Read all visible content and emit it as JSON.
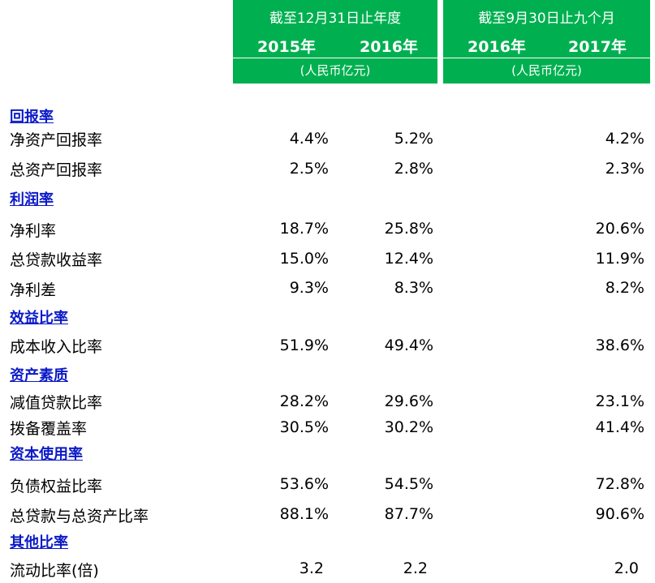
{
  "header": {
    "group1": {
      "title": "截至12月31日止年度",
      "years": [
        "2015年",
        "2016年"
      ],
      "unit": "(人民币亿元)"
    },
    "group2": {
      "title": "截至9月30日止九个月",
      "years": [
        "2016年",
        "2017年"
      ],
      "unit": "(人民币亿元)"
    }
  },
  "sections": [
    {
      "title": "回报率",
      "rows": [
        {
          "label": "净资产回报率",
          "v2015": "4.4%",
          "v2016": "5.2%",
          "v2017": "4.2%"
        },
        {
          "label": "总资产回报率",
          "v2015": "2.5%",
          "v2016": "2.8%",
          "v2017": "2.3%"
        }
      ]
    },
    {
      "title": "利润率",
      "rows": [
        {
          "label": "净利率",
          "v2015": "18.7%",
          "v2016": "25.8%",
          "v2017": "20.6%"
        },
        {
          "label": "总贷款收益率",
          "v2015": "15.0%",
          "v2016": "12.4%",
          "v2017": "11.9%"
        },
        {
          "label": "净利差",
          "v2015": "9.3%",
          "v2016": "8.3%",
          "v2017": "8.2%"
        }
      ]
    },
    {
      "title": "效益比率",
      "rows": [
        {
          "label": "成本收入比率",
          "v2015": "51.9%",
          "v2016": "49.4%",
          "v2017": "38.6%"
        }
      ]
    },
    {
      "title": "资产素质",
      "rows": [
        {
          "label": "减值贷款比率",
          "v2015": "28.2%",
          "v2016": "29.6%",
          "v2017": "23.1%"
        },
        {
          "label": "拨备覆盖率",
          "v2015": "30.5%",
          "v2016": "30.2%",
          "v2017": "41.4%"
        }
      ]
    },
    {
      "title": "资本使用率",
      "rows": [
        {
          "label": "负债权益比率",
          "v2015": "53.6%",
          "v2016": "54.5%",
          "v2017": "72.8%"
        },
        {
          "label": "总贷款与总资产比率",
          "v2015": "88.1%",
          "v2016": "87.7%",
          "v2017": "90.6%"
        }
      ]
    },
    {
      "title": "其他比率",
      "rows": [
        {
          "label": "流动比率(倍)",
          "v2015": "3.2",
          "v2016": "2.2",
          "v2017": "2.0"
        }
      ]
    }
  ]
}
